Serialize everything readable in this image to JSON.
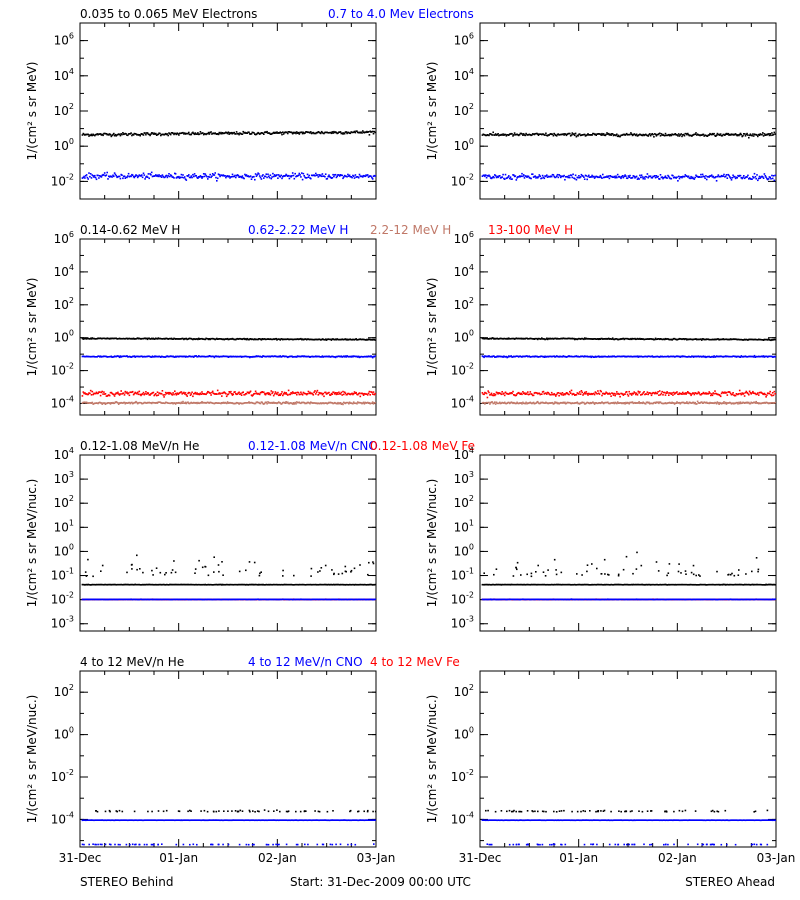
{
  "colors": {
    "black": "#000000",
    "blue": "#0000ff",
    "tan": "#c07868",
    "red": "#ff0000"
  },
  "footer": {
    "left": "STEREO Behind",
    "center": "Start: 31-Dec-2009 00:00 UTC",
    "right": "STEREO Ahead"
  },
  "chart_data": [
    {
      "type": "scatter",
      "row": 1,
      "panel_titles": [
        {
          "text": "0.035 to 0.065 MeV Electrons",
          "color": "black"
        },
        {
          "text": "0.7 to 4.0 Mev Electrons",
          "color": "blue"
        }
      ],
      "ylabel": "1/(cm² s sr MeV)",
      "yscale": "log",
      "ylim": [
        0.001,
        10000000
      ],
      "y_ticks": [
        {
          "exp": "-2",
          "value": 0.01
        },
        {
          "exp": "0",
          "value": 1
        },
        {
          "exp": "2",
          "value": 100
        },
        {
          "exp": "4",
          "value": 10000
        },
        {
          "exp": "6",
          "value": 1000000
        }
      ],
      "x_ticks": [
        "31-Dec",
        "01-Jan",
        "02-Jan",
        "03-Jan"
      ],
      "xlim_days": [
        0,
        3
      ],
      "panels": [
        {
          "name": "STEREO Behind",
          "series": [
            {
              "label": "0.035 to 0.065 MeV Electrons",
              "color": "black",
              "level": 5,
              "ends": 7,
              "scatter": 0.12
            },
            {
              "label": "0.7 to 4.0 Mev Electrons",
              "color": "blue",
              "level": 0.022,
              "ends": 0.022,
              "scatter": 0.22
            }
          ]
        },
        {
          "name": "STEREO Ahead",
          "series": [
            {
              "label": "0.035 to 0.065 MeV Electrons",
              "color": "black",
              "level": 5,
              "ends": 5,
              "scatter": 0.12
            },
            {
              "label": "0.7 to 4.0 Mev Electrons",
              "color": "blue",
              "level": 0.02,
              "ends": 0.02,
              "scatter": 0.22
            }
          ]
        }
      ]
    },
    {
      "type": "scatter",
      "row": 2,
      "panel_titles": [
        {
          "text": "0.14-0.62 MeV H",
          "color": "black"
        },
        {
          "text": "0.62-2.22 MeV H",
          "color": "blue"
        },
        {
          "text": "2.2-12 MeV H",
          "color": "tan"
        },
        {
          "text": "13-100 MeV H",
          "color": "red"
        }
      ],
      "ylabel": "1/(cm² s sr MeV)",
      "yscale": "log",
      "ylim": [
        2e-05,
        1000000
      ],
      "y_ticks": [
        {
          "exp": "-4",
          "value": 0.0001
        },
        {
          "exp": "-2",
          "value": 0.01
        },
        {
          "exp": "0",
          "value": 1
        },
        {
          "exp": "2",
          "value": 100
        },
        {
          "exp": "4",
          "value": 10000
        },
        {
          "exp": "6",
          "value": 1000000
        }
      ],
      "x_ticks": [
        "31-Dec",
        "01-Jan",
        "02-Jan",
        "03-Jan"
      ],
      "xlim_days": [
        0,
        3
      ],
      "panels": [
        {
          "name": "STEREO Behind",
          "series": [
            {
              "label": "0.14-0.62 MeV H",
              "color": "black",
              "level": 1,
              "ends": 0.85,
              "scatter": 0.05
            },
            {
              "label": "0.62-2.22 MeV H",
              "color": "blue",
              "level": 0.08,
              "ends": 0.08,
              "scatter": 0.05
            },
            {
              "label": "13-100 MeV H",
              "color": "red",
              "level": 0.00045,
              "ends": 0.00045,
              "scatter": 0.2
            },
            {
              "label": "2.2-12 MeV H",
              "color": "tan",
              "level": 0.00012,
              "ends": 0.00012,
              "scatter": 0.08
            }
          ]
        },
        {
          "name": "STEREO Ahead",
          "series": [
            {
              "label": "0.14-0.62 MeV H",
              "color": "black",
              "level": 1,
              "ends": 0.85,
              "scatter": 0.05
            },
            {
              "label": "0.62-2.22 MeV H",
              "color": "blue",
              "level": 0.08,
              "ends": 0.08,
              "scatter": 0.05
            },
            {
              "label": "13-100 MeV H",
              "color": "red",
              "level": 0.00045,
              "ends": 0.00045,
              "scatter": 0.2
            },
            {
              "label": "2.2-12 MeV H",
              "color": "tan",
              "level": 0.00012,
              "ends": 0.00012,
              "scatter": 0.08
            }
          ]
        }
      ]
    },
    {
      "type": "scatter",
      "row": 3,
      "panel_titles": [
        {
          "text": "0.12-1.08 MeV/n He",
          "color": "black"
        },
        {
          "text": "0.12-1.08 MeV/n CNO",
          "color": "blue"
        },
        {
          "text": "0.12-1.08 MeV Fe",
          "color": "red"
        }
      ],
      "ylabel": "1/(cm² s sr MeV/nuc.)",
      "yscale": "log",
      "ylim": [
        0.0005,
        10000
      ],
      "y_ticks": [
        {
          "exp": "-3",
          "value": 0.001
        },
        {
          "exp": "-2",
          "value": 0.01
        },
        {
          "exp": "-1",
          "value": 0.1
        },
        {
          "exp": "0",
          "value": 1
        },
        {
          "exp": "1",
          "value": 10
        },
        {
          "exp": "2",
          "value": 100
        },
        {
          "exp": "3",
          "value": 1000
        },
        {
          "exp": "4",
          "value": 10000
        }
      ],
      "x_ticks": [
        "31-Dec",
        "01-Jan",
        "02-Jan",
        "03-Jan"
      ],
      "xlim_days": [
        0,
        3
      ],
      "panels": [
        {
          "name": "STEREO Behind",
          "series": [
            {
              "label": "0.12-1.08 MeV/n He",
              "color": "black",
              "level": 0.1,
              "ends": 0.1,
              "scatter": 0.35,
              "sparse": true
            },
            {
              "label": "0.12-1.08 MeV/n He",
              "color": "black",
              "level": 0.045,
              "ends": 0.045,
              "scatter": 0.01
            },
            {
              "label": "0.12-1.08 MeV Fe",
              "color": "red",
              "level": 0.011,
              "ends": 0.011,
              "scatter": 0.01
            },
            {
              "label": "0.12-1.08 MeV/n CNO",
              "color": "blue",
              "level": 0.011,
              "ends": 0.011,
              "scatter": 0.01
            }
          ]
        },
        {
          "name": "STEREO Ahead",
          "series": [
            {
              "label": "0.12-1.08 MeV/n He",
              "color": "black",
              "level": 0.1,
              "ends": 0.1,
              "scatter": 0.3,
              "sparse": true
            },
            {
              "label": "0.12-1.08 MeV/n He",
              "color": "black",
              "level": 0.045,
              "ends": 0.045,
              "scatter": 0.01
            },
            {
              "label": "0.12-1.08 MeV Fe",
              "color": "red",
              "level": 0.011,
              "ends": 0.011,
              "scatter": 0.01
            },
            {
              "label": "0.12-1.08 MeV/n CNO",
              "color": "blue",
              "level": 0.011,
              "ends": 0.011,
              "scatter": 0.01
            }
          ]
        }
      ]
    },
    {
      "type": "scatter",
      "row": 4,
      "panel_titles": [
        {
          "text": "4 to 12 MeV/n He",
          "color": "black"
        },
        {
          "text": "4 to 12 MeV/n CNO",
          "color": "blue"
        },
        {
          "text": "4 to 12 MeV Fe",
          "color": "red"
        }
      ],
      "ylabel": "1/(cm² s sr MeV/nuc.)",
      "yscale": "log",
      "ylim": [
        5e-06,
        1000
      ],
      "y_ticks": [
        {
          "exp": "-4",
          "value": 0.0001
        },
        {
          "exp": "-2",
          "value": 0.01
        },
        {
          "exp": "0",
          "value": 1
        },
        {
          "exp": "2",
          "value": 100
        }
      ],
      "x_ticks": [
        "31-Dec",
        "01-Jan",
        "02-Jan",
        "03-Jan"
      ],
      "xlim_days": [
        0,
        3
      ],
      "panels": [
        {
          "name": "STEREO Behind",
          "series": [
            {
              "label": "4 to 12 MeV/n CNO",
              "color": "blue",
              "level": 0.0001,
              "ends": 0.0001,
              "scatter": 0.005
            },
            {
              "label": "4 to 12 MeV/n He",
              "color": "black",
              "level": 0.00025,
              "ends": 0.00025,
              "scatter": 0.03,
              "sparse": true
            },
            {
              "label": "4 to 12 MeV/n CNO",
              "color": "blue",
              "level": 7e-06,
              "ends": 7e-06,
              "scatter": 0.01,
              "sparse": true
            }
          ]
        },
        {
          "name": "STEREO Ahead",
          "series": [
            {
              "label": "4 to 12 MeV/n CNO",
              "color": "blue",
              "level": 0.0001,
              "ends": 0.0001,
              "scatter": 0.005
            },
            {
              "label": "4 to 12 MeV/n He",
              "color": "black",
              "level": 0.00025,
              "ends": 0.00025,
              "scatter": 0.03,
              "sparse": true
            },
            {
              "label": "4 to 12 MeV/n CNO",
              "color": "blue",
              "level": 7e-06,
              "ends": 7e-06,
              "scatter": 0.01,
              "sparse": true
            }
          ]
        }
      ]
    }
  ]
}
